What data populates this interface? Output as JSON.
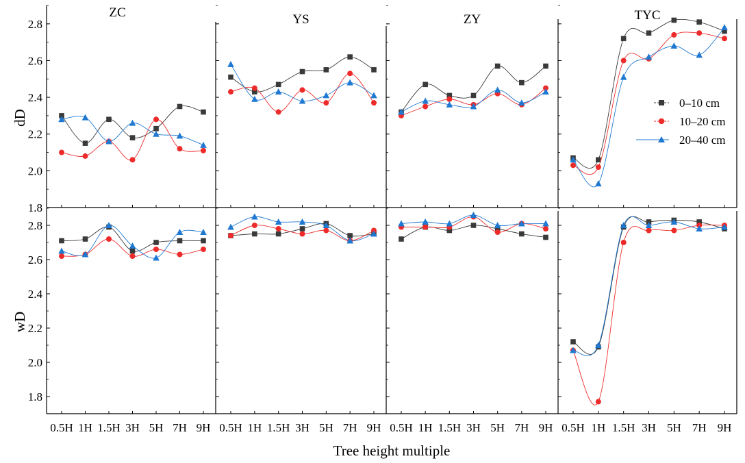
{
  "figure": {
    "xlabel": "Tree height multiple",
    "row_labels": [
      "dD",
      "wD"
    ],
    "legend": [
      {
        "label": "0–10 cm",
        "color": "#3a3a3a",
        "marker": "square"
      },
      {
        "label": "10–20 cm",
        "color": "#ee2b2b",
        "marker": "circle"
      },
      {
        "label": "20–40 cm",
        "color": "#1f78d1",
        "marker": "triangle"
      }
    ]
  },
  "chart_data": [
    {
      "type": "line",
      "panel": "ZC-dD",
      "title": "ZC",
      "row": "dD",
      "categories": [
        "0.5H",
        "1H",
        "1.5H",
        "3H",
        "5H",
        "7H",
        "9H"
      ],
      "ylim": [
        1.8,
        2.9
      ],
      "yticks": [
        1.8,
        2.0,
        2.2,
        2.4,
        2.6,
        2.8
      ],
      "series": [
        {
          "name": "0–10 cm",
          "values": [
            2.3,
            2.15,
            2.28,
            2.18,
            2.23,
            2.35,
            2.32
          ]
        },
        {
          "name": "10–20 cm",
          "values": [
            2.1,
            2.08,
            2.16,
            2.06,
            2.28,
            2.12,
            2.11
          ]
        },
        {
          "name": "20–40 cm",
          "values": [
            2.28,
            2.29,
            2.16,
            2.26,
            2.2,
            2.19,
            2.14
          ]
        }
      ]
    },
    {
      "type": "line",
      "panel": "YS-dD",
      "title": "YS",
      "row": "dD",
      "categories": [
        "0.5H",
        "1H",
        "1.5H",
        "3H",
        "5H",
        "7H",
        "9H"
      ],
      "ylim": [
        1.8,
        2.9
      ],
      "yticks": [
        1.8,
        2.0,
        2.2,
        2.4,
        2.6,
        2.8
      ],
      "series": [
        {
          "name": "0–10 cm",
          "values": [
            2.51,
            2.43,
            2.47,
            2.54,
            2.55,
            2.62,
            2.55
          ]
        },
        {
          "name": "10–20 cm",
          "values": [
            2.43,
            2.45,
            2.32,
            2.44,
            2.37,
            2.53,
            2.37
          ]
        },
        {
          "name": "20–40 cm",
          "values": [
            2.58,
            2.39,
            2.43,
            2.38,
            2.41,
            2.48,
            2.41
          ]
        }
      ]
    },
    {
      "type": "line",
      "panel": "ZY-dD",
      "title": "ZY",
      "row": "dD",
      "categories": [
        "0.5H",
        "1H",
        "1.5H",
        "3H",
        "5H",
        "7H",
        "9H"
      ],
      "ylim": [
        1.8,
        2.9
      ],
      "yticks": [
        1.8,
        2.0,
        2.2,
        2.4,
        2.6,
        2.8
      ],
      "series": [
        {
          "name": "0–10 cm",
          "values": [
            2.32,
            2.47,
            2.41,
            2.41,
            2.57,
            2.48,
            2.57
          ]
        },
        {
          "name": "10–20 cm",
          "values": [
            2.3,
            2.35,
            2.39,
            2.36,
            2.42,
            2.36,
            2.45
          ]
        },
        {
          "name": "20–40 cm",
          "values": [
            2.32,
            2.38,
            2.36,
            2.35,
            2.44,
            2.37,
            2.43
          ]
        }
      ]
    },
    {
      "type": "line",
      "panel": "TYC-dD",
      "title": "TYC",
      "row": "dD",
      "categories": [
        "0.5H",
        "1H",
        "1.5H",
        "3H",
        "5H",
        "7H",
        "9H"
      ],
      "ylim": [
        1.8,
        2.9
      ],
      "yticks": [
        1.8,
        2.0,
        2.2,
        2.4,
        2.6,
        2.8
      ],
      "series": [
        {
          "name": "0–10 cm",
          "values": [
            2.07,
            2.06,
            2.72,
            2.75,
            2.82,
            2.81,
            2.76
          ]
        },
        {
          "name": "10–20 cm",
          "values": [
            2.03,
            2.02,
            2.6,
            2.61,
            2.74,
            2.75,
            2.72
          ]
        },
        {
          "name": "20–40 cm",
          "values": [
            2.06,
            1.93,
            2.51,
            2.62,
            2.68,
            2.63,
            2.78
          ]
        }
      ]
    },
    {
      "type": "line",
      "panel": "ZC-wD",
      "title": "",
      "row": "wD",
      "categories": [
        "0.5H",
        "1H",
        "1.5H",
        "3H",
        "5H",
        "7H",
        "9H"
      ],
      "ylim": [
        1.7,
        2.9
      ],
      "yticks": [
        1.8,
        2.0,
        2.2,
        2.4,
        2.6,
        2.8
      ],
      "series": [
        {
          "name": "0–10 cm",
          "values": [
            2.71,
            2.72,
            2.79,
            2.65,
            2.7,
            2.71,
            2.71
          ]
        },
        {
          "name": "10–20 cm",
          "values": [
            2.62,
            2.63,
            2.72,
            2.62,
            2.66,
            2.63,
            2.66
          ]
        },
        {
          "name": "20–40 cm",
          "values": [
            2.65,
            2.63,
            2.8,
            2.68,
            2.61,
            2.76,
            2.76
          ]
        }
      ]
    },
    {
      "type": "line",
      "panel": "YS-wD",
      "title": "",
      "row": "wD",
      "categories": [
        "0.5H",
        "1H",
        "1.5H",
        "3H",
        "5H",
        "7H",
        "9H"
      ],
      "ylim": [
        1.7,
        2.9
      ],
      "yticks": [
        1.8,
        2.0,
        2.2,
        2.4,
        2.6,
        2.8
      ],
      "series": [
        {
          "name": "0–10 cm",
          "values": [
            2.74,
            2.75,
            2.75,
            2.78,
            2.81,
            2.74,
            2.75
          ]
        },
        {
          "name": "10–20 cm",
          "values": [
            2.74,
            2.8,
            2.78,
            2.75,
            2.77,
            2.71,
            2.77
          ]
        },
        {
          "name": "20–40 cm",
          "values": [
            2.79,
            2.85,
            2.82,
            2.82,
            2.8,
            2.71,
            2.75
          ]
        }
      ]
    },
    {
      "type": "line",
      "panel": "ZY-wD",
      "title": "",
      "row": "wD",
      "categories": [
        "0.5H",
        "1H",
        "1.5H",
        "3H",
        "5H",
        "7H",
        "9H"
      ],
      "ylim": [
        1.7,
        2.9
      ],
      "yticks": [
        1.8,
        2.0,
        2.2,
        2.4,
        2.6,
        2.8
      ],
      "series": [
        {
          "name": "0–10 cm",
          "values": [
            2.72,
            2.79,
            2.77,
            2.8,
            2.78,
            2.75,
            2.73
          ]
        },
        {
          "name": "10–20 cm",
          "values": [
            2.79,
            2.79,
            2.79,
            2.85,
            2.76,
            2.81,
            2.78
          ]
        },
        {
          "name": "20–40 cm",
          "values": [
            2.81,
            2.82,
            2.81,
            2.86,
            2.8,
            2.81,
            2.81
          ]
        }
      ]
    },
    {
      "type": "line",
      "panel": "TYC-wD",
      "title": "",
      "row": "wD",
      "categories": [
        "0.5H",
        "1H",
        "1.5H",
        "3H",
        "5H",
        "7H",
        "9H"
      ],
      "ylim": [
        1.7,
        2.9
      ],
      "yticks": [
        1.8,
        2.0,
        2.2,
        2.4,
        2.6,
        2.8
      ],
      "series": [
        {
          "name": "0–10 cm",
          "values": [
            2.12,
            2.09,
            2.79,
            2.82,
            2.83,
            2.82,
            2.78
          ]
        },
        {
          "name": "10–20 cm",
          "values": [
            2.07,
            1.77,
            2.7,
            2.77,
            2.77,
            2.8,
            2.8
          ]
        },
        {
          "name": "20–40 cm",
          "values": [
            2.07,
            2.1,
            2.8,
            2.8,
            2.82,
            2.78,
            2.79
          ]
        }
      ]
    }
  ]
}
